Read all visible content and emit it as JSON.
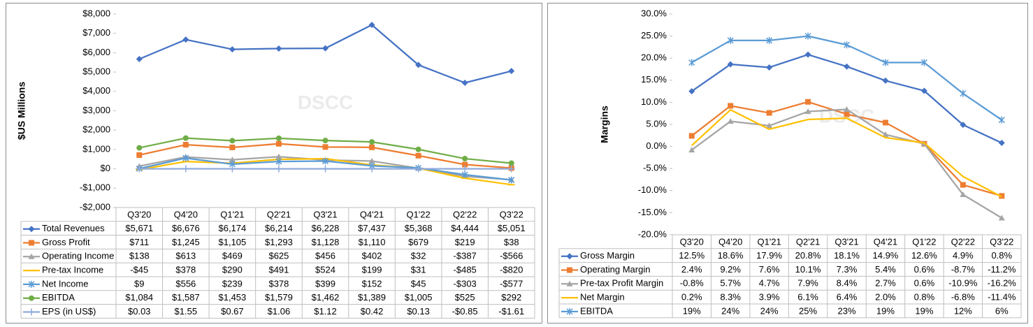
{
  "chart_data": [
    {
      "type": "line",
      "y_label": "$US Millions",
      "watermark": "DSCC",
      "data_table": true,
      "categories": [
        "Q3'20",
        "Q4'20",
        "Q1'21",
        "Q2'21",
        "Q3'21",
        "Q4'21",
        "Q1'22",
        "Q2'22",
        "Q3'22"
      ],
      "ylim": [
        -2000,
        8000
      ],
      "yticks": [
        {
          "value": -2000,
          "label": "-$2,000"
        },
        {
          "value": -1000,
          "label": "-$1,000"
        },
        {
          "value": 0,
          "label": "$0"
        },
        {
          "value": 1000,
          "label": "$1,000"
        },
        {
          "value": 2000,
          "label": "$2,000"
        },
        {
          "value": 3000,
          "label": "$3,000"
        },
        {
          "value": 4000,
          "label": "$4,000"
        },
        {
          "value": 5000,
          "label": "$5,000"
        },
        {
          "value": 6000,
          "label": "$6,000"
        },
        {
          "value": 7000,
          "label": "$7,000"
        },
        {
          "value": 8000,
          "label": "$8,000"
        }
      ],
      "series": [
        {
          "name": "Total Revenues",
          "color": "#4472c4",
          "marker": "diamond",
          "values": [
            5671,
            6676,
            6174,
            6214,
            6228,
            7437,
            5368,
            4444,
            5051
          ],
          "value_labels": [
            "$5,671",
            "$6,676",
            "$6,174",
            "$6,214",
            "$6,228",
            "$7,437",
            "$5,368",
            "$4,444",
            "$5,051"
          ]
        },
        {
          "name": "Gross Profit",
          "color": "#ed7d31",
          "marker": "square",
          "values": [
            711,
            1245,
            1105,
            1293,
            1128,
            1110,
            679,
            219,
            38
          ],
          "value_labels": [
            "$711",
            "$1,245",
            "$1,105",
            "$1,293",
            "$1,128",
            "$1,110",
            "$679",
            "$219",
            "$38"
          ]
        },
        {
          "name": "Operating Income",
          "color": "#a5a5a5",
          "marker": "triangle",
          "values": [
            138,
            613,
            469,
            625,
            456,
            402,
            32,
            -387,
            -566
          ],
          "value_labels": [
            "$138",
            "$613",
            "$469",
            "$625",
            "$456",
            "$402",
            "$32",
            "-$387",
            "-$566"
          ]
        },
        {
          "name": "Pre-tax Income",
          "color": "#ffc000",
          "marker": "dash",
          "values": [
            -45,
            378,
            290,
            491,
            524,
            199,
            31,
            -485,
            -820
          ],
          "value_labels": [
            "-$45",
            "$378",
            "$290",
            "$491",
            "$524",
            "$199",
            "$31",
            "-$485",
            "-$820"
          ]
        },
        {
          "name": "Net Income",
          "color": "#5b9bd5",
          "marker": "star",
          "values": [
            9,
            556,
            239,
            378,
            399,
            152,
            45,
            -303,
            -577
          ],
          "value_labels": [
            "$9",
            "$556",
            "$239",
            "$378",
            "$399",
            "$152",
            "$45",
            "-$303",
            "-$577"
          ]
        },
        {
          "name": "EBITDA",
          "color": "#70ad47",
          "marker": "circle",
          "values": [
            1084,
            1587,
            1453,
            1579,
            1462,
            1389,
            1005,
            525,
            292
          ],
          "value_labels": [
            "$1,084",
            "$1,587",
            "$1,453",
            "$1,579",
            "$1,462",
            "$1,389",
            "$1,005",
            "$525",
            "$292"
          ]
        },
        {
          "name": "EPS (in US$)",
          "color": "#8faadc",
          "marker": "plus",
          "values": [
            0.03,
            1.55,
            0.67,
            1.06,
            1.12,
            0.42,
            0.13,
            -0.85,
            -1.61
          ],
          "value_labels": [
            "$0.03",
            "$1.55",
            "$0.67",
            "$1.06",
            "$1.12",
            "$0.42",
            "$0.13",
            "-$0.85",
            "-$1.61"
          ]
        }
      ]
    },
    {
      "type": "line",
      "y_label": "Margins",
      "watermark": "DSCC",
      "data_table": true,
      "categories": [
        "Q3'20",
        "Q4'20",
        "Q1'21",
        "Q2'21",
        "Q3'21",
        "Q4'21",
        "Q1'22",
        "Q2'22",
        "Q3'22"
      ],
      "ylim": [
        -20,
        30
      ],
      "yticks": [
        {
          "value": -20,
          "label": "-20.0%"
        },
        {
          "value": -15,
          "label": "-15.0%"
        },
        {
          "value": -10,
          "label": "-10.0%"
        },
        {
          "value": -5,
          "label": "-5.0%"
        },
        {
          "value": 0,
          "label": "0.0%"
        },
        {
          "value": 5,
          "label": "5.0%"
        },
        {
          "value": 10,
          "label": "10.0%"
        },
        {
          "value": 15,
          "label": "15.0%"
        },
        {
          "value": 20,
          "label": "20.0%"
        },
        {
          "value": 25,
          "label": "25.0%"
        },
        {
          "value": 30,
          "label": "30.0%"
        }
      ],
      "series": [
        {
          "name": "Gross Margin",
          "color": "#4472c4",
          "marker": "diamond",
          "values": [
            12.5,
            18.6,
            17.9,
            20.8,
            18.1,
            14.9,
            12.6,
            4.9,
            0.8
          ],
          "value_labels": [
            "12.5%",
            "18.6%",
            "17.9%",
            "20.8%",
            "18.1%",
            "14.9%",
            "12.6%",
            "4.9%",
            "0.8%"
          ]
        },
        {
          "name": "Operating Margin",
          "color": "#ed7d31",
          "marker": "square",
          "values": [
            2.4,
            9.2,
            7.6,
            10.1,
            7.3,
            5.4,
            0.6,
            -8.7,
            -11.2
          ],
          "value_labels": [
            "2.4%",
            "9.2%",
            "7.6%",
            "10.1%",
            "7.3%",
            "5.4%",
            "0.6%",
            "-8.7%",
            "-11.2%"
          ]
        },
        {
          "name": "Pre-tax Profit Margin",
          "color": "#a5a5a5",
          "marker": "triangle",
          "values": [
            -0.8,
            5.7,
            4.7,
            7.9,
            8.4,
            2.7,
            0.6,
            -10.9,
            -16.2
          ],
          "value_labels": [
            "-0.8%",
            "5.7%",
            "4.7%",
            "7.9%",
            "8.4%",
            "2.7%",
            "0.6%",
            "-10.9%",
            "-16.2%"
          ]
        },
        {
          "name": "Net Margin",
          "color": "#ffc000",
          "marker": "none",
          "values": [
            0.2,
            8.3,
            3.9,
            6.1,
            6.4,
            2.0,
            0.8,
            -6.8,
            -11.4
          ],
          "value_labels": [
            "0.2%",
            "8.3%",
            "3.9%",
            "6.1%",
            "6.4%",
            "2.0%",
            "0.8%",
            "-6.8%",
            "-11.4%"
          ]
        },
        {
          "name": "EBITDA",
          "color": "#5b9bd5",
          "marker": "star",
          "values": [
            19,
            24,
            24,
            25,
            23,
            19,
            19,
            12,
            6
          ],
          "value_labels": [
            "19%",
            "24%",
            "24%",
            "25%",
            "23%",
            "19%",
            "19%",
            "12%",
            "6%"
          ]
        }
      ]
    }
  ]
}
